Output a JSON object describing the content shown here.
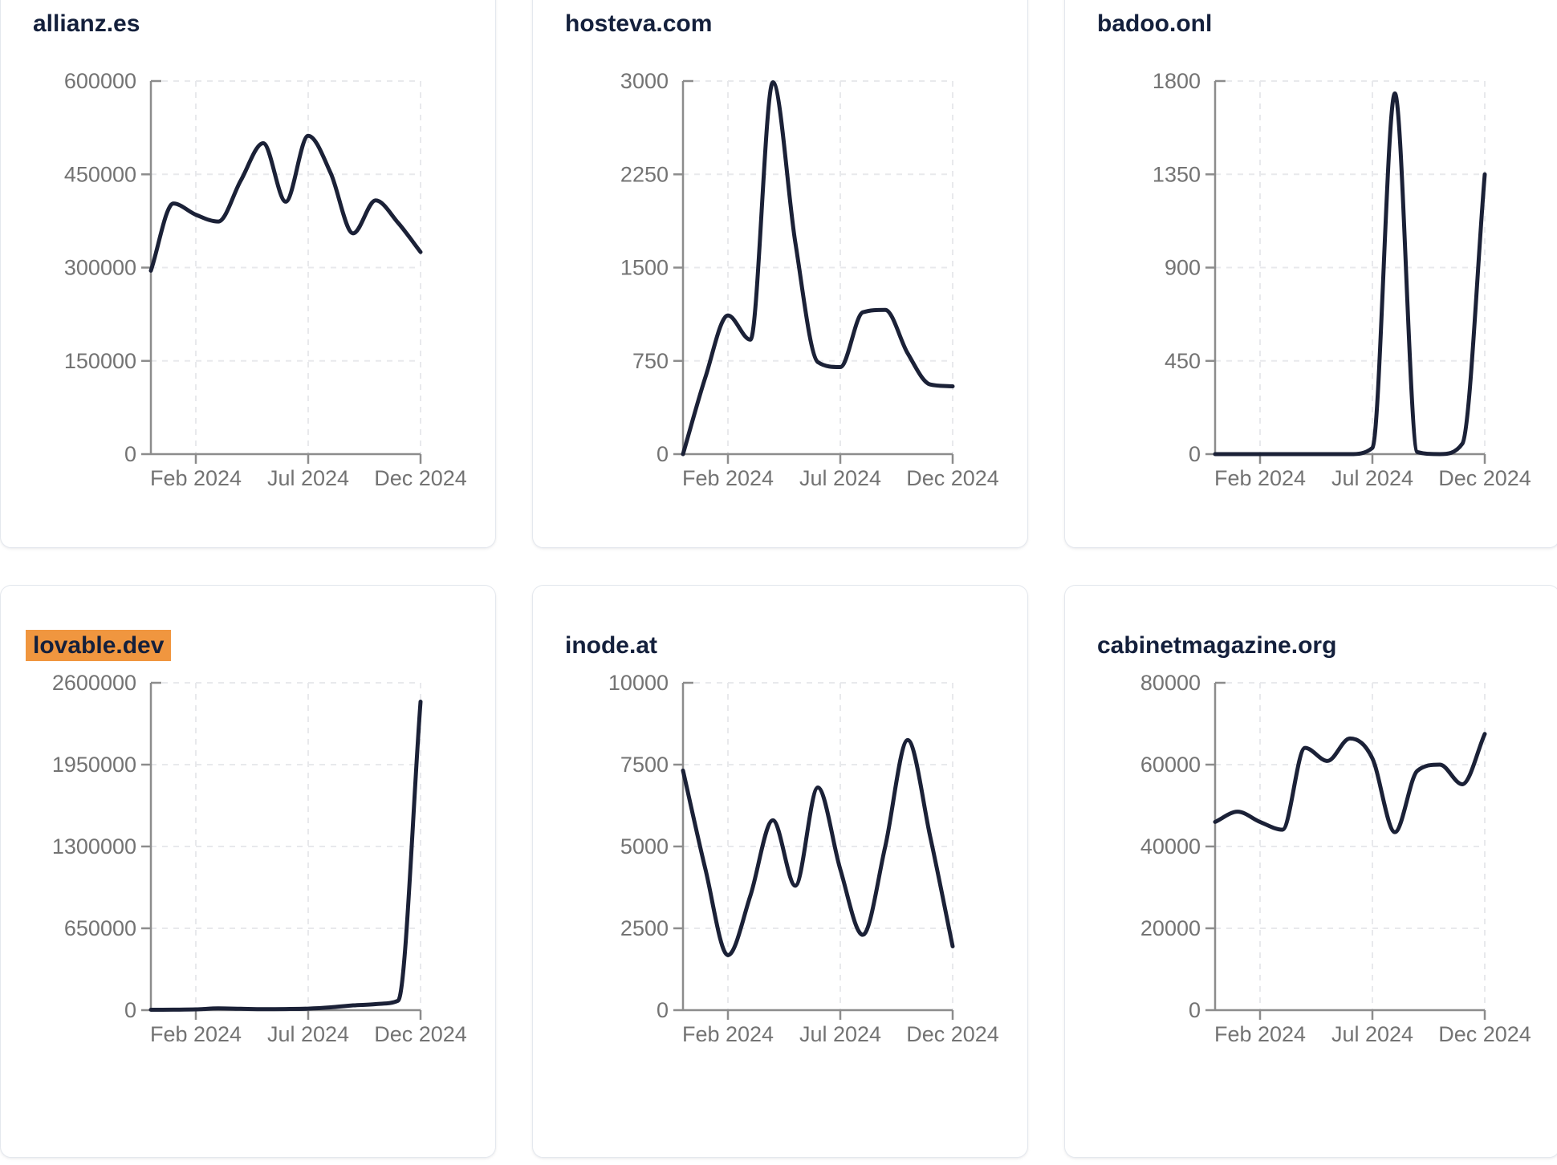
{
  "page": {
    "background": "#ffffff"
  },
  "style": {
    "line_color": "#1b2137",
    "title_color": "#14203c",
    "title_highlight_color": "#f0963f",
    "axis_color": "#8c8c8c",
    "tick_label_color": "#737373",
    "grid_color": "#e8e9ec",
    "card_border_color": "#e4e8ee",
    "card_background": "#ffffff"
  },
  "chart_data": [
    {
      "type": "line",
      "title": "allianz.es",
      "title_highlighted": false,
      "categories": [
        "Dec 2023",
        "Jan 2024",
        "Feb 2024",
        "Mar 2024",
        "Apr 2024",
        "May 2024",
        "Jun 2024",
        "Jul 2024",
        "Aug 2024",
        "Sep 2024",
        "Oct 2024",
        "Nov 2024",
        "Dec 2024"
      ],
      "values": [
        295000,
        403000,
        385000,
        374000,
        440000,
        500000,
        406000,
        512000,
        452000,
        355000,
        408000,
        372000,
        325000
      ],
      "ylim": [
        0,
        600000
      ],
      "y_ticks": [
        0,
        150000,
        300000,
        450000,
        600000
      ],
      "x_ticks": [
        {
          "index": 2,
          "label": "Feb 2024"
        },
        {
          "index": 7,
          "label": "Jul 2024"
        },
        {
          "index": 12,
          "label": "Dec 2024"
        }
      ],
      "grid": "dashed",
      "legend": "none"
    },
    {
      "type": "line",
      "title": "hosteva.com",
      "title_highlighted": false,
      "categories": [
        "Dec 2023",
        "Jan 2024",
        "Feb 2024",
        "Mar 2024",
        "Apr 2024",
        "May 2024",
        "Jun 2024",
        "Jul 2024",
        "Aug 2024",
        "Sep 2024",
        "Oct 2024",
        "Nov 2024",
        "Dec 2024"
      ],
      "values": [
        0,
        620,
        1115,
        920,
        2990,
        1700,
        740,
        700,
        1140,
        1160,
        810,
        560,
        545
      ],
      "ylim": [
        0,
        3000
      ],
      "y_ticks": [
        0,
        750,
        1500,
        2250,
        3000
      ],
      "x_ticks": [
        {
          "index": 2,
          "label": "Feb 2024"
        },
        {
          "index": 7,
          "label": "Jul 2024"
        },
        {
          "index": 12,
          "label": "Dec 2024"
        }
      ],
      "grid": "dashed",
      "legend": "none"
    },
    {
      "type": "line",
      "title": "badoo.onl",
      "title_highlighted": false,
      "categories": [
        "Dec 2023",
        "Jan 2024",
        "Feb 2024",
        "Mar 2024",
        "Apr 2024",
        "May 2024",
        "Jun 2024",
        "Jul 2024",
        "Aug 2024",
        "Sep 2024",
        "Oct 2024",
        "Nov 2024",
        "Dec 2024"
      ],
      "values": [
        0,
        0,
        0,
        0,
        0,
        0,
        0,
        30,
        1740,
        10,
        0,
        50,
        1350
      ],
      "ylim": [
        0,
        1800
      ],
      "y_ticks": [
        0,
        450,
        900,
        1350,
        1800
      ],
      "x_ticks": [
        {
          "index": 2,
          "label": "Feb 2024"
        },
        {
          "index": 7,
          "label": "Jul 2024"
        },
        {
          "index": 12,
          "label": "Dec 2024"
        }
      ],
      "grid": "dashed",
      "legend": "none"
    },
    {
      "type": "line",
      "title": "lovable.dev",
      "title_highlighted": true,
      "categories": [
        "Dec 2023",
        "Jan 2024",
        "Feb 2024",
        "Mar 2024",
        "Apr 2024",
        "May 2024",
        "Jun 2024",
        "Jul 2024",
        "Aug 2024",
        "Sep 2024",
        "Oct 2024",
        "Nov 2024",
        "Dec 2024"
      ],
      "values": [
        3000,
        4000,
        6000,
        14000,
        11000,
        8000,
        9000,
        12000,
        22000,
        38000,
        48000,
        75000,
        2450000
      ],
      "ylim": [
        0,
        2600000
      ],
      "y_ticks": [
        0,
        650000,
        1300000,
        1950000,
        2600000
      ],
      "x_ticks": [
        {
          "index": 2,
          "label": "Feb 2024"
        },
        {
          "index": 7,
          "label": "Jul 2024"
        },
        {
          "index": 12,
          "label": "Dec 2024"
        }
      ],
      "grid": "dashed",
      "legend": "none"
    },
    {
      "type": "line",
      "title": "inode.at",
      "title_highlighted": false,
      "categories": [
        "Dec 2023",
        "Jan 2024",
        "Feb 2024",
        "Mar 2024",
        "Apr 2024",
        "May 2024",
        "Jun 2024",
        "Jul 2024",
        "Aug 2024",
        "Sep 2024",
        "Oct 2024",
        "Nov 2024",
        "Dec 2024"
      ],
      "values": [
        7320,
        4300,
        1680,
        3500,
        5800,
        3800,
        6800,
        4300,
        2300,
        5000,
        8250,
        5300,
        1950
      ],
      "ylim": [
        0,
        10000
      ],
      "y_ticks": [
        0,
        2500,
        5000,
        7500,
        10000
      ],
      "x_ticks": [
        {
          "index": 2,
          "label": "Feb 2024"
        },
        {
          "index": 7,
          "label": "Jul 2024"
        },
        {
          "index": 12,
          "label": "Dec 2024"
        }
      ],
      "grid": "dashed",
      "legend": "none"
    },
    {
      "type": "line",
      "title": "cabinetmagazine.org",
      "title_highlighted": false,
      "categories": [
        "Dec 2023",
        "Jan 2024",
        "Feb 2024",
        "Mar 2024",
        "Apr 2024",
        "May 2024",
        "Jun 2024",
        "Jul 2024",
        "Aug 2024",
        "Sep 2024",
        "Oct 2024",
        "Nov 2024",
        "Dec 2024"
      ],
      "values": [
        46000,
        48500,
        46000,
        44100,
        64100,
        60900,
        66400,
        61500,
        43500,
        58500,
        60000,
        55200,
        67500
      ],
      "ylim": [
        0,
        80000
      ],
      "y_ticks": [
        0,
        20000,
        40000,
        60000,
        80000
      ],
      "x_ticks": [
        {
          "index": 2,
          "label": "Feb 2024"
        },
        {
          "index": 7,
          "label": "Jul 2024"
        },
        {
          "index": 12,
          "label": "Dec 2024"
        }
      ],
      "grid": "dashed",
      "legend": "none"
    }
  ]
}
